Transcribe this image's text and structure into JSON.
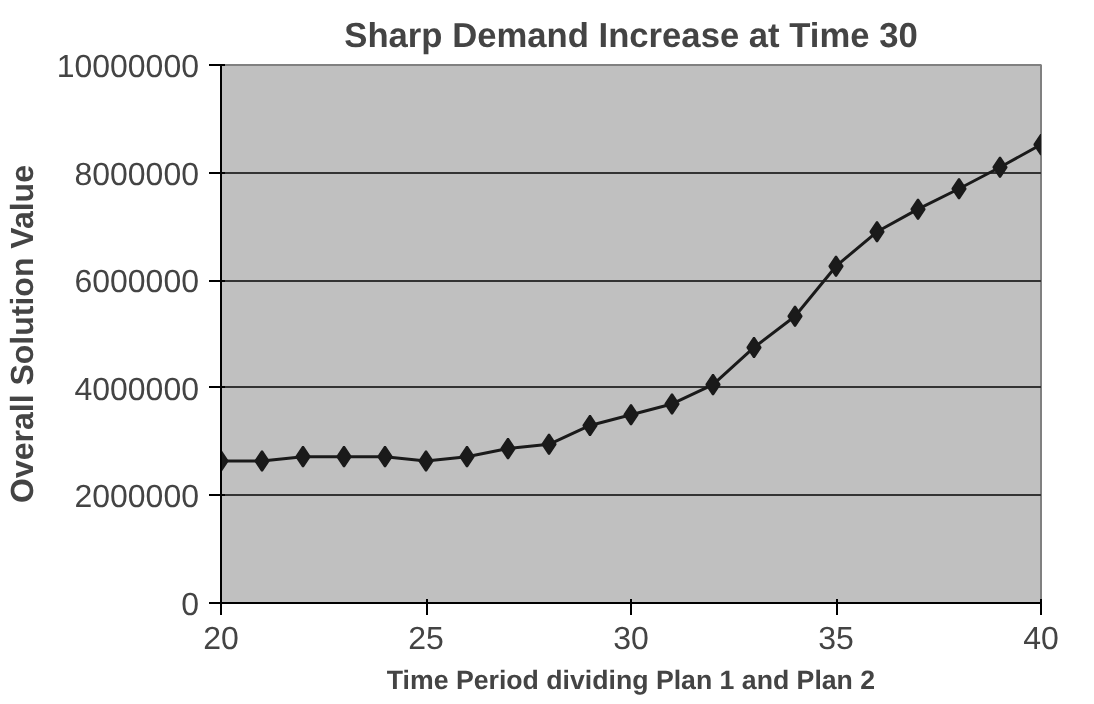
{
  "chart_data": {
    "type": "line",
    "title": "Sharp Demand Increase at Time 30",
    "xlabel": "Time Period dividing Plan 1 and Plan 2",
    "ylabel": "Overall Solution Value",
    "x": [
      20,
      21,
      22,
      23,
      24,
      25,
      26,
      27,
      28,
      29,
      30,
      31,
      32,
      33,
      34,
      35,
      36,
      37,
      38,
      39,
      40
    ],
    "series": [
      {
        "color": "#1a1a1a",
        "values": [
          2640000,
          2640000,
          2720000,
          2720000,
          2720000,
          2640000,
          2720000,
          2870000,
          2950000,
          3300000,
          3500000,
          3700000,
          4060000,
          4750000,
          5330000,
          6260000,
          6900000,
          7320000,
          7700000,
          8100000,
          8520000
        ]
      }
    ],
    "xlim": [
      20,
      40
    ],
    "xticks": [
      20,
      25,
      30,
      35,
      40
    ],
    "ylim": [
      0,
      10000000
    ],
    "yticks": [
      0,
      2000000,
      4000000,
      6000000,
      8000000,
      10000000
    ],
    "grid": "y",
    "marker": "diamond",
    "line_style": "solid"
  }
}
